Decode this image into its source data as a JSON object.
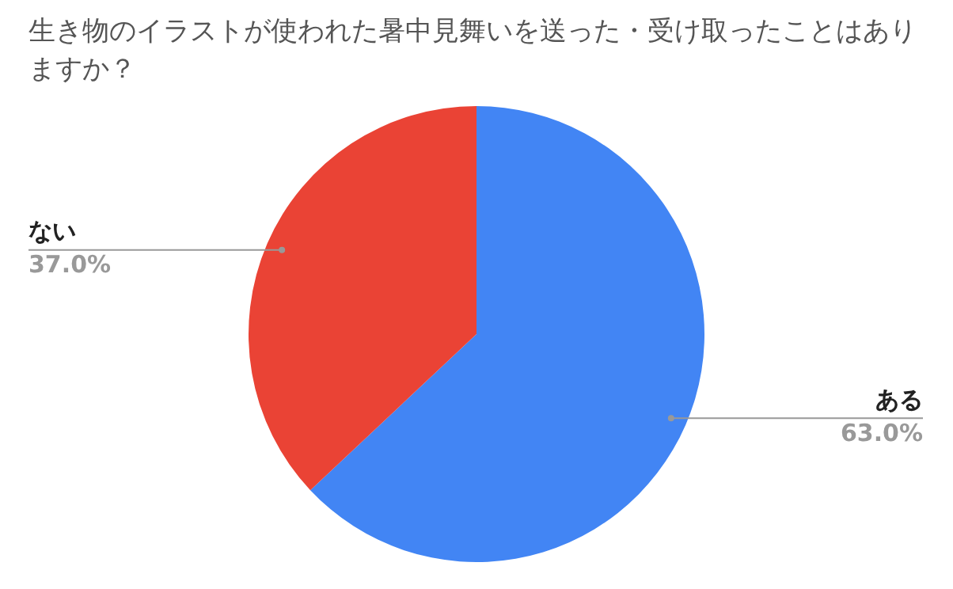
{
  "chart_data": {
    "type": "pie",
    "title": "生き物のイラストが使われた暑中見舞いを送った・受け取ったことはありますか？",
    "categories": [
      "ある",
      "ない"
    ],
    "values": [
      63,
      37
    ],
    "colors": [
      "#4285f4",
      "#ea4335"
    ],
    "value_labels": [
      "63.0%",
      "37.0%"
    ],
    "legend": false
  }
}
